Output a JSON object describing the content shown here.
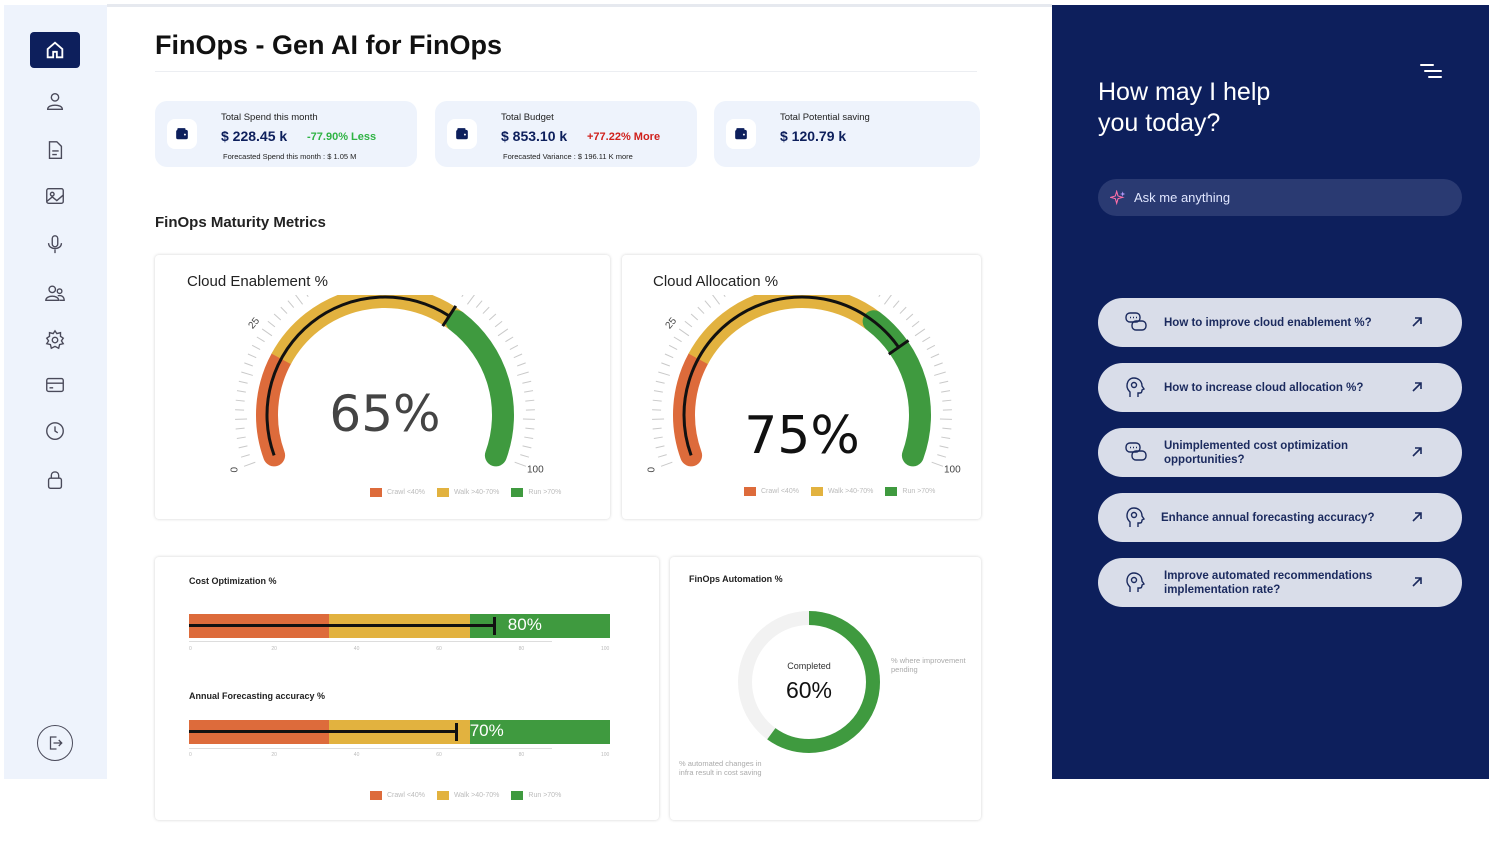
{
  "page": {
    "title": "FinOps - Gen AI for FinOps"
  },
  "sidebar": {
    "items": [
      {
        "icon": "home-icon",
        "active": true
      },
      {
        "icon": "user-icon"
      },
      {
        "icon": "document-icon"
      },
      {
        "icon": "image-icon"
      },
      {
        "icon": "microphone-icon"
      },
      {
        "icon": "users-icon"
      },
      {
        "icon": "gear-icon"
      },
      {
        "icon": "credit-card-icon"
      },
      {
        "icon": "clock-icon"
      },
      {
        "icon": "lock-icon"
      }
    ],
    "logout_icon": "logout-icon"
  },
  "stats": [
    {
      "label": "Total Spend this month",
      "value": "$ 228.45 k",
      "delta": "-77.90% Less",
      "delta_color": "#2fb344",
      "sub": "Forecasted Spend this month : $ 1.05 M",
      "icon": "wallet-icon"
    },
    {
      "label": "Total Budget",
      "value": "$ 853.10 k",
      "delta": "+77.22% More",
      "delta_color": "#d0211c",
      "sub": "Forecasted Variance : $ 196.11 K more",
      "icon": "wallet-icon"
    },
    {
      "label": "Total Potential saving",
      "value": "$ 120.79 k",
      "icon": "wallet-icon"
    }
  ],
  "maturity": {
    "title": "FinOps Maturity Metrics",
    "legend": [
      "Crawl <40%",
      "Walk >40-70%",
      "Run >70%"
    ],
    "colors": {
      "crawl": "#dd6b3b",
      "walk": "#e2b23f",
      "run": "#3f9a3f"
    },
    "gauges": [
      {
        "title": "Cloud Enablement %",
        "value": 65,
        "label": "65%",
        "ticks": [
          "0",
          "25",
          "50",
          "100"
        ]
      },
      {
        "title": "Cloud Allocation %",
        "value": 75,
        "label": "75%",
        "ticks": [
          "0",
          "25",
          "50",
          "100"
        ]
      }
    ],
    "bars": [
      {
        "title": "Cost Optimization %",
        "value": 80,
        "label": "80%"
      },
      {
        "title": "Annual Forecasting accuracy %",
        "value": 70,
        "label": "70%"
      }
    ],
    "bar_ticks": [
      "0",
      "20",
      "40",
      "60",
      "80",
      "100"
    ],
    "automation": {
      "title": "FinOps Automation %",
      "value": 60,
      "center_caption": "Completed",
      "center_label": "60%",
      "pending_note": "% where improvement pending",
      "done_note": "% automated changes in infra result in cost saving",
      "colors": {
        "done": "#3f9a3f",
        "pending": "#f2f2f2"
      }
    }
  },
  "assistant": {
    "title_line1": "How may I help",
    "title_line2": "you today?",
    "placeholder": "Ask me anything",
    "menu_icon": "menu-icon",
    "suggestions": [
      {
        "text": "How to improve cloud enablement %?",
        "icon": "chat-bubbles-icon"
      },
      {
        "text": "How to increase cloud allocation %?",
        "icon": "head-thinking-icon"
      },
      {
        "text": "Unimplemented cost optimization opportunities?",
        "icon": "chat-bubbles-icon"
      },
      {
        "text": "Enhance annual forecasting accuracy?",
        "icon": "head-thinking-icon"
      },
      {
        "text": "Improve automated recommendations implementation rate?",
        "icon": "head-thinking-icon"
      }
    ]
  }
}
